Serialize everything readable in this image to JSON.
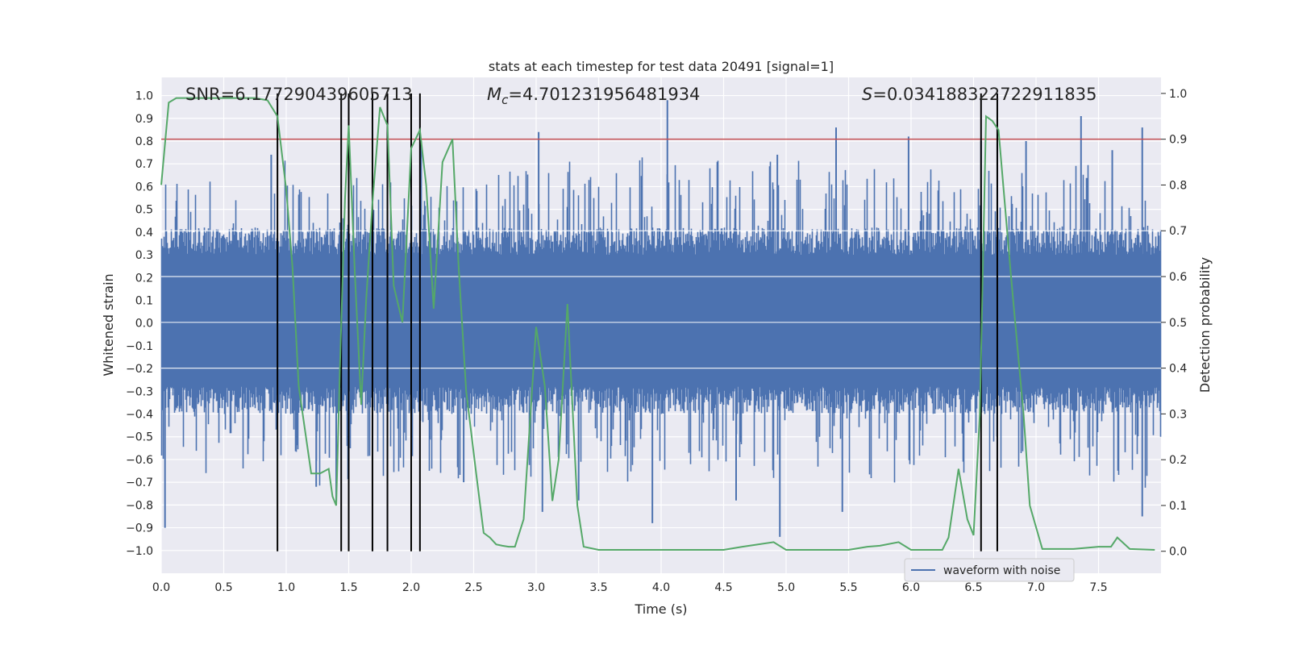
{
  "chart_data": {
    "type": "line",
    "title": "stats at each timestep for test data 20491 [signal=1]",
    "xlabel": "Time (s)",
    "ylabel": "Whitened strain",
    "y2label": "Detection probability",
    "xlim": [
      0.0,
      8.0
    ],
    "ylim": [
      -1.1,
      1.08
    ],
    "y2lim": [
      -0.048,
      1.035
    ],
    "x_ticks": [
      0.0,
      0.5,
      1.0,
      1.5,
      2.0,
      2.5,
      3.0,
      3.5,
      4.0,
      4.5,
      5.0,
      5.5,
      6.0,
      6.5,
      7.0,
      7.5
    ],
    "x_tick_labels": [
      "0.0",
      "0.5",
      "1.0",
      "1.5",
      "2.0",
      "2.5",
      "3.0",
      "3.5",
      "4.0",
      "4.5",
      "5.0",
      "5.5",
      "6.0",
      "6.5",
      "7.0",
      "7.5"
    ],
    "y_ticks": [
      -1.0,
      -0.9,
      -0.8,
      -0.7,
      -0.6,
      -0.5,
      -0.4,
      -0.3,
      -0.2,
      -0.1,
      0.0,
      0.1,
      0.2,
      0.3,
      0.4,
      0.5,
      0.6,
      0.7,
      0.8,
      0.9,
      1.0
    ],
    "y_tick_labels": [
      "−1.0",
      "−0.9",
      "−0.8",
      "−0.7",
      "−0.6",
      "−0.5",
      "−0.4",
      "−0.3",
      "−0.2",
      "−0.1",
      "0.0",
      "0.1",
      "0.2",
      "0.3",
      "0.4",
      "0.5",
      "0.6",
      "0.7",
      "0.8",
      "0.9",
      "1.0"
    ],
    "y2_ticks": [
      0.0,
      0.1,
      0.2,
      0.3,
      0.4,
      0.5,
      0.6,
      0.7,
      0.8,
      0.9,
      1.0
    ],
    "y2_tick_labels": [
      "0.0",
      "0.1",
      "0.2",
      "0.3",
      "0.4",
      "0.5",
      "0.6",
      "0.7",
      "0.8",
      "0.9",
      "1.0"
    ],
    "grid": true,
    "legend": {
      "placement": "bottom-right",
      "entries": [
        "waveform with noise"
      ]
    },
    "annotations": {
      "snr": "SNR=6.177290439605713",
      "mc_symbol": "M",
      "mc_sub": "c",
      "mc_value": "=4.701231956481934",
      "s_symbol": "S",
      "s_value": "=0.034188322722911835"
    },
    "threshold": {
      "axis": "right",
      "value": 0.9,
      "color": "#c44e52"
    },
    "vertical_lines": {
      "x": [
        0.93,
        1.44,
        1.5,
        1.69,
        1.81,
        2.0,
        2.07,
        6.56,
        6.69
      ],
      "y_range": [
        0.0,
        1.0
      ],
      "axis": "right",
      "color": "#000000"
    },
    "series": [
      {
        "name": "waveform with noise",
        "axis": "left",
        "color": "#4c72b0",
        "style": "dense-noise",
        "base_amplitude": 0.35,
        "notable_peaks": [
          {
            "x": 0.03,
            "y": -0.9
          },
          {
            "x": 0.88,
            "y": 0.74
          },
          {
            "x": 1.24,
            "y": -0.72
          },
          {
            "x": 1.4,
            "y": -0.8
          },
          {
            "x": 2.08,
            "y": 0.8
          },
          {
            "x": 2.42,
            "y": -0.7
          },
          {
            "x": 3.02,
            "y": 0.84
          },
          {
            "x": 3.05,
            "y": -0.83
          },
          {
            "x": 3.34,
            "y": -0.78
          },
          {
            "x": 4.05,
            "y": 0.98
          },
          {
            "x": 3.93,
            "y": -0.88
          },
          {
            "x": 4.6,
            "y": -0.78
          },
          {
            "x": 4.93,
            "y": 0.74
          },
          {
            "x": 4.95,
            "y": -0.94
          },
          {
            "x": 5.4,
            "y": 0.86
          },
          {
            "x": 5.45,
            "y": -0.83
          },
          {
            "x": 5.98,
            "y": 0.82
          },
          {
            "x": 6.56,
            "y": 0.8
          },
          {
            "x": 6.69,
            "y": 0.79
          },
          {
            "x": 6.92,
            "y": 0.8
          },
          {
            "x": 7.36,
            "y": 0.91
          },
          {
            "x": 7.61,
            "y": 0.76
          },
          {
            "x": 7.85,
            "y": 0.86
          },
          {
            "x": 7.85,
            "y": -0.85
          }
        ]
      },
      {
        "name": "",
        "axis": "right",
        "color": "#55a868",
        "x": [
          0.0,
          0.06,
          0.12,
          0.5,
          0.75,
          0.85,
          0.93,
          1.0,
          1.05,
          1.1,
          1.2,
          1.27,
          1.34,
          1.37,
          1.4,
          1.43,
          1.47,
          1.5,
          1.55,
          1.6,
          1.64,
          1.69,
          1.75,
          1.81,
          1.86,
          1.93,
          2.0,
          2.07,
          2.12,
          2.18,
          2.25,
          2.33,
          2.38,
          2.44,
          2.52,
          2.58,
          2.63,
          2.68,
          2.73,
          2.78,
          2.83,
          2.9,
          3.0,
          3.07,
          3.13,
          3.18,
          3.25,
          3.33,
          3.38,
          3.5,
          4.0,
          4.5,
          4.65,
          4.9,
          5.0,
          5.5,
          5.65,
          5.75,
          5.9,
          6.0,
          6.25,
          6.3,
          6.38,
          6.45,
          6.5,
          6.55,
          6.6,
          6.65,
          6.7,
          6.8,
          6.9,
          6.95,
          7.05,
          7.3,
          7.5,
          7.6,
          7.65,
          7.75,
          7.95
        ],
        "y": [
          0.8,
          0.98,
          0.99,
          0.99,
          0.99,
          0.985,
          0.95,
          0.79,
          0.62,
          0.36,
          0.17,
          0.17,
          0.18,
          0.12,
          0.1,
          0.4,
          0.77,
          0.93,
          0.6,
          0.32,
          0.55,
          0.76,
          0.97,
          0.93,
          0.58,
          0.5,
          0.88,
          0.92,
          0.8,
          0.53,
          0.85,
          0.9,
          0.62,
          0.35,
          0.17,
          0.04,
          0.03,
          0.015,
          0.012,
          0.01,
          0.01,
          0.07,
          0.49,
          0.36,
          0.11,
          0.2,
          0.54,
          0.1,
          0.01,
          0.003,
          0.003,
          0.003,
          0.01,
          0.02,
          0.003,
          0.003,
          0.01,
          0.012,
          0.02,
          0.003,
          0.003,
          0.03,
          0.18,
          0.07,
          0.035,
          0.3,
          0.95,
          0.94,
          0.92,
          0.6,
          0.3,
          0.1,
          0.005,
          0.005,
          0.01,
          0.01,
          0.03,
          0.005,
          0.003
        ]
      }
    ]
  }
}
